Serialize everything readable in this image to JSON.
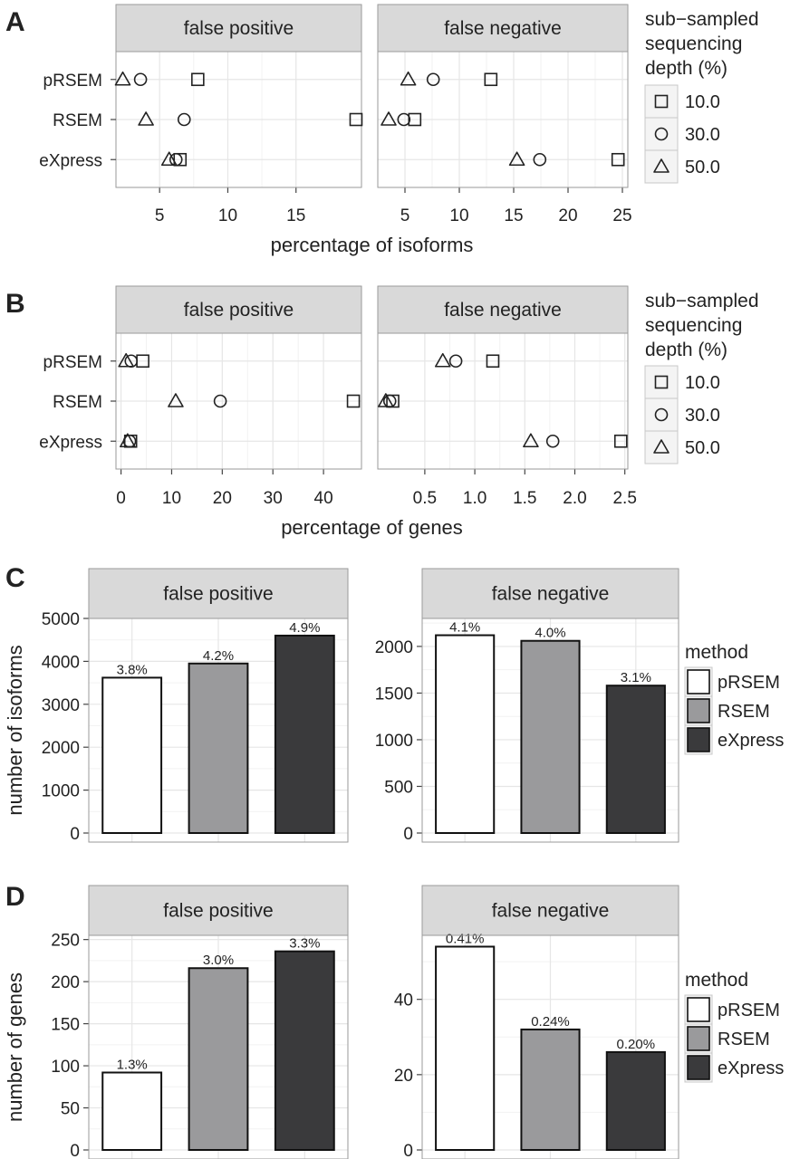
{
  "chart_data": [
    {
      "panel": "A",
      "type": "scatter",
      "xlabel": "percentage of isoforms",
      "categories": [
        "pRSEM",
        "RSEM",
        "eXpress"
      ],
      "legend": {
        "title": [
          "sub−sampled",
          "sequencing",
          "depth (%)"
        ],
        "entries": [
          {
            "label": "10.0",
            "shape": "square"
          },
          {
            "label": "30.0",
            "shape": "circle"
          },
          {
            "label": "50.0",
            "shape": "triangle"
          }
        ]
      },
      "facets": [
        {
          "strip": "false positive",
          "xlim": [
            1.8,
            19.8
          ],
          "xticks": [
            5,
            10,
            15
          ],
          "tick_labels": [
            "5",
            "10",
            "15"
          ],
          "series": [
            {
              "name": "10.0",
              "values": [
                7.8,
                19.4,
                6.5
              ]
            },
            {
              "name": "30.0",
              "values": [
                3.6,
                6.8,
                6.2
              ]
            },
            {
              "name": "50.0",
              "values": [
                2.3,
                4.0,
                5.7
              ]
            }
          ]
        },
        {
          "strip": "false negative",
          "xlim": [
            2.5,
            25.5
          ],
          "xticks": [
            5,
            10,
            15,
            20,
            25
          ],
          "tick_labels": [
            "5",
            "10",
            "15",
            "20",
            "25"
          ],
          "series": [
            {
              "name": "10.0",
              "values": [
                12.9,
                5.9,
                24.6
              ]
            },
            {
              "name": "30.0",
              "values": [
                7.6,
                4.9,
                17.4
              ]
            },
            {
              "name": "50.0",
              "values": [
                5.3,
                3.5,
                15.3
              ]
            }
          ]
        }
      ]
    },
    {
      "panel": "B",
      "type": "scatter",
      "xlabel": "percentage of genes",
      "categories": [
        "pRSEM",
        "RSEM",
        "eXpress"
      ],
      "legend": {
        "title": [
          "sub−sampled",
          "sequencing",
          "depth (%)"
        ],
        "entries": [
          {
            "label": "10.0",
            "shape": "square"
          },
          {
            "label": "30.0",
            "shape": "circle"
          },
          {
            "label": "50.0",
            "shape": "triangle"
          }
        ]
      },
      "facets": [
        {
          "strip": "false positive",
          "xlim": [
            -1.0,
            47.5
          ],
          "xticks": [
            0,
            10,
            20,
            30,
            40
          ],
          "tick_labels": [
            "0",
            "10",
            "20",
            "30",
            "40"
          ],
          "series": [
            {
              "name": "10.0",
              "values": [
                4.3,
                45.9,
                1.9
              ]
            },
            {
              "name": "30.0",
              "values": [
                2.0,
                19.6,
                1.7
              ]
            },
            {
              "name": "50.0",
              "values": [
                1.0,
                10.8,
                1.3
              ]
            }
          ]
        },
        {
          "strip": "false negative",
          "xlim": [
            0.03,
            2.53
          ],
          "xticks": [
            0.5,
            1.0,
            1.5,
            2.0,
            2.5
          ],
          "tick_labels": [
            "0.5",
            "1.0",
            "1.5",
            "2.0",
            "2.5"
          ],
          "series": [
            {
              "name": "10.0",
              "values": [
                1.18,
                0.18,
                2.46
              ]
            },
            {
              "name": "30.0",
              "values": [
                0.81,
                0.15,
                1.78
              ]
            },
            {
              "name": "50.0",
              "values": [
                0.68,
                0.11,
                1.56
              ]
            }
          ]
        }
      ]
    },
    {
      "panel": "C",
      "type": "bar",
      "ylabel": "number of isoforms",
      "categories": [
        "pRSEM",
        "RSEM",
        "eXpress"
      ],
      "legend": {
        "title": "method",
        "entries": [
          {
            "label": "pRSEM",
            "color": "#ffffff"
          },
          {
            "label": "RSEM",
            "color": "#9a9a9c"
          },
          {
            "label": "eXpress",
            "color": "#3a3a3c"
          }
        ]
      },
      "facets": [
        {
          "strip": "false positive",
          "ylim": [
            0,
            5000
          ],
          "yticks": [
            0,
            1000,
            2000,
            3000,
            4000,
            5000
          ],
          "values": [
            3620,
            3950,
            4600
          ],
          "labels": [
            "3.8%",
            "4.2%",
            "4.9%"
          ]
        },
        {
          "strip": "false negative",
          "ylim": [
            0,
            2300
          ],
          "yticks": [
            0,
            500,
            1000,
            1500,
            2000
          ],
          "values": [
            2120,
            2060,
            1580
          ],
          "labels": [
            "4.1%",
            "4.0%",
            "3.1%"
          ]
        }
      ]
    },
    {
      "panel": "D",
      "type": "bar",
      "ylabel": "number of genes",
      "categories": [
        "pRSEM",
        "RSEM",
        "eXpress"
      ],
      "legend": {
        "title": "method",
        "entries": [
          {
            "label": "pRSEM",
            "color": "#ffffff"
          },
          {
            "label": "RSEM",
            "color": "#9a9a9c"
          },
          {
            "label": "eXpress",
            "color": "#3a3a3c"
          }
        ]
      },
      "facets": [
        {
          "strip": "false positive",
          "ylim": [
            0,
            255
          ],
          "yticks": [
            0,
            50,
            100,
            150,
            200,
            250
          ],
          "values": [
            92,
            216,
            236
          ],
          "labels": [
            "1.3%",
            "3.0%",
            "3.3%"
          ]
        },
        {
          "strip": "false negative",
          "ylim": [
            0,
            57
          ],
          "yticks": [
            0,
            20,
            40
          ],
          "values": [
            54,
            32,
            26
          ],
          "labels": [
            "0.41%",
            "0.24%",
            "0.20%"
          ]
        }
      ]
    }
  ]
}
